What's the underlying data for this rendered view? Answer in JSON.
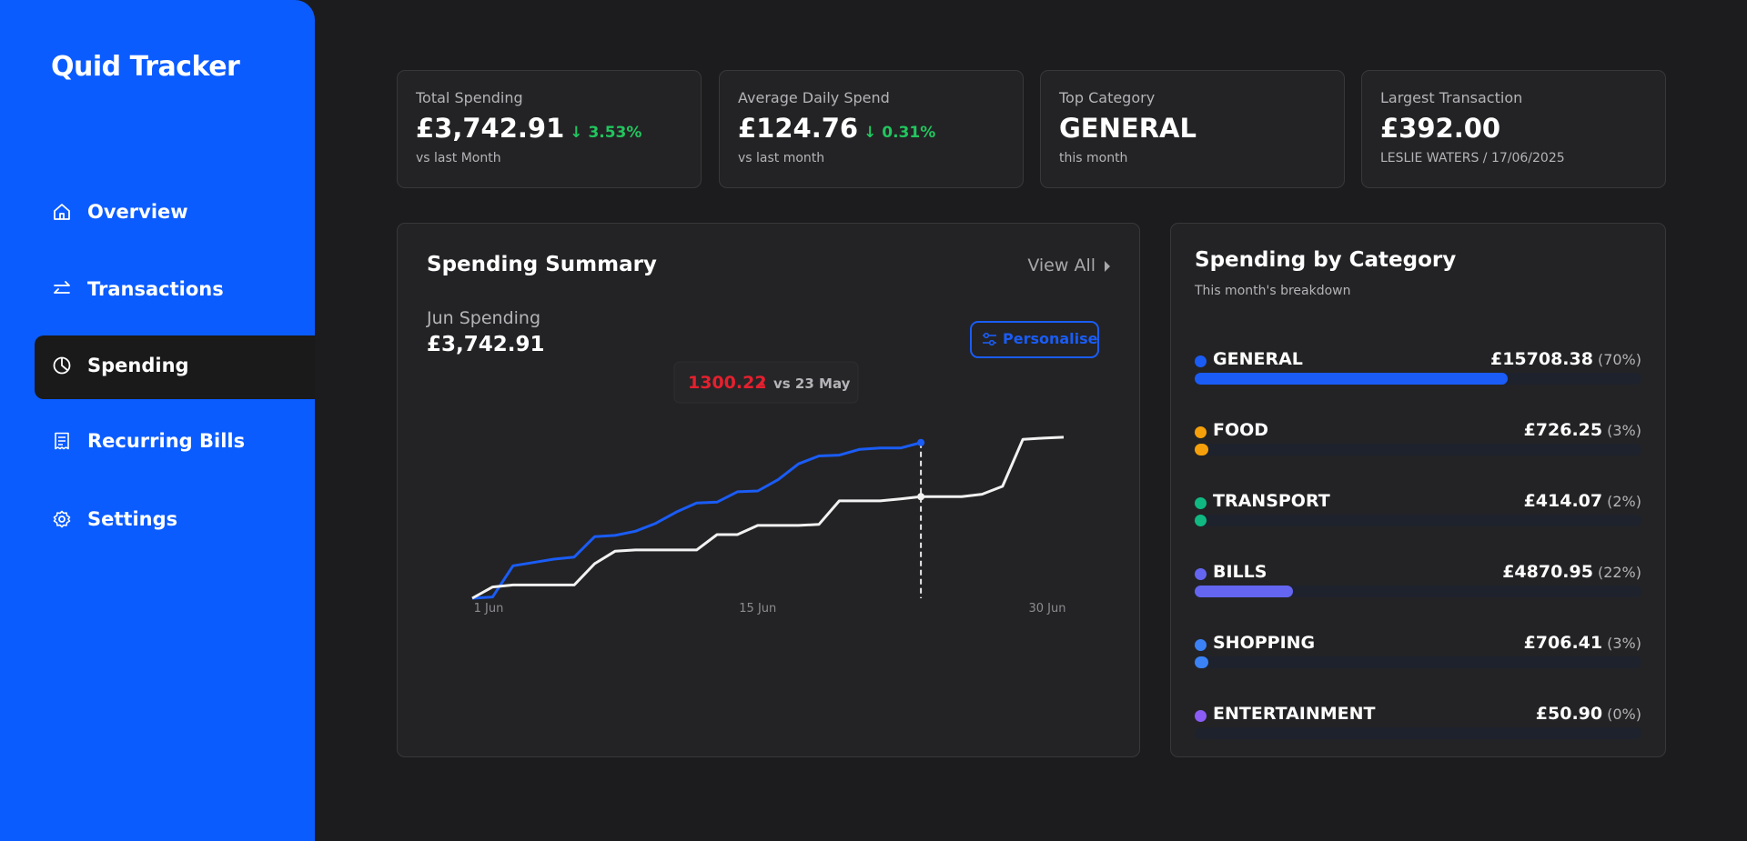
{
  "sidebar": {
    "brand": "Quid Tracker",
    "nav": [
      {
        "label": "Overview",
        "icon": "home"
      },
      {
        "label": "Transactions",
        "icon": "swap"
      },
      {
        "label": "Spending",
        "icon": "pie",
        "active": true
      },
      {
        "label": "Recurring Bills",
        "icon": "receipt"
      },
      {
        "label": "Settings",
        "icon": "gear"
      }
    ]
  },
  "stats": [
    {
      "label": "Total Spending",
      "value": "£3,742.91",
      "change": "↓ 3.53%",
      "sub": "vs last Month"
    },
    {
      "label": "Average Daily Spend",
      "value": "£124.76",
      "change": "↓ 0.31%",
      "sub": "vs last month"
    },
    {
      "label": "Top Category",
      "value": "GENERAL",
      "sub": "this month"
    },
    {
      "label": "Largest Transaction",
      "value": "£392.00",
      "sub": "LESLIE WATERS / 17/06/2025"
    }
  ],
  "summary": {
    "view_all": "View All",
    "personalise": "Personalise"
  },
  "chart_data": {
    "type": "line",
    "title": "Spending Summary",
    "subtitle": "Jun Spending",
    "total": "£3,742.91",
    "x": [
      1,
      2,
      3,
      4,
      5,
      6,
      7,
      8,
      9,
      10,
      11,
      12,
      13,
      14,
      15,
      16,
      17,
      18,
      19,
      20,
      21,
      22,
      23,
      24,
      25,
      26,
      27,
      28,
      29,
      30
    ],
    "xlim": [
      1,
      30
    ],
    "xticks": [
      {
        "value": 1,
        "label": "1 Jun"
      },
      {
        "value": 15,
        "label": "15 Jun"
      },
      {
        "value": 30,
        "label": "30 Jun"
      }
    ],
    "ylim": [
      0,
      4000
    ],
    "series": [
      {
        "color": "#1a5cf5",
        "values": [
          0,
          30,
          780,
          860,
          940,
          990,
          1480,
          1510,
          1610,
          1800,
          2070,
          2290,
          2310,
          2560,
          2580,
          2850,
          3230,
          3420,
          3440,
          3580,
          3610,
          3610,
          3742.91,
          null,
          null,
          null,
          null,
          null,
          null,
          null
        ]
      },
      {
        "color": "#f2f2f2",
        "values": [
          0,
          270,
          320,
          320,
          320,
          320,
          830,
          1130,
          1160,
          1160,
          1160,
          1160,
          1530,
          1530,
          1750,
          1750,
          1750,
          1775,
          2340,
          2340,
          2340,
          2390,
          2442.69,
          2443,
          2443,
          2500,
          2690,
          3820,
          3850,
          3870
        ]
      }
    ],
    "tooltip": {
      "x": 23,
      "value": 1300.22,
      "text": "vs 23 May",
      "color": "#e5202e"
    }
  },
  "categories": {
    "title": "Spending by Category",
    "subtitle": "This month's breakdown",
    "items": [
      {
        "name": "GENERAL",
        "amount": "£15708.38",
        "percent": 70,
        "percent_label": "(70%)",
        "color": "#1a5cf5"
      },
      {
        "name": "FOOD",
        "amount": "£726.25",
        "percent": 3,
        "percent_label": "(3%)",
        "color": "#f5a00b"
      },
      {
        "name": "TRANSPORT",
        "amount": "£414.07",
        "percent": 2,
        "percent_label": "(2%)",
        "color": "#10b981"
      },
      {
        "name": "BILLS",
        "amount": "£4870.95",
        "percent": 22,
        "percent_label": "(22%)",
        "color": "#6466f1"
      },
      {
        "name": "SHOPPING",
        "amount": "£706.41",
        "percent": 3,
        "percent_label": "(3%)",
        "color": "#3b82f6"
      },
      {
        "name": "ENTERTAINMENT",
        "amount": "£50.90",
        "percent": 0,
        "percent_label": "(0%)",
        "color": "#8b5cf6"
      }
    ]
  }
}
